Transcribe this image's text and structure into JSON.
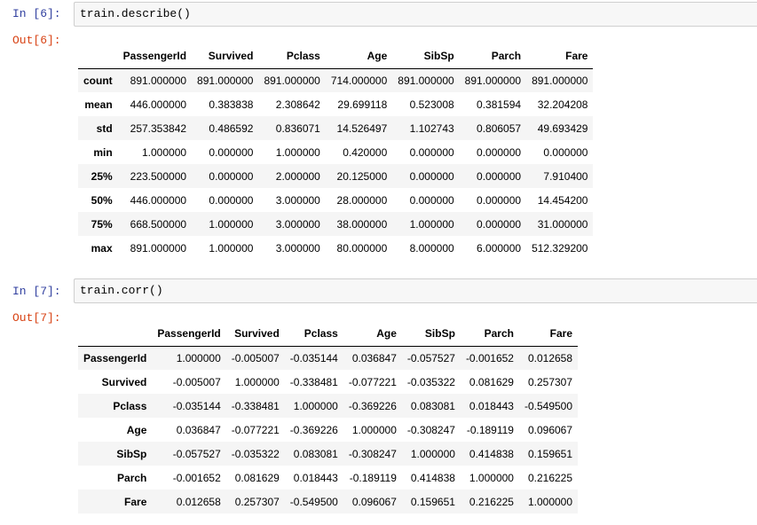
{
  "cells": [
    {
      "in_prompt": "In [6]:",
      "code": "train.describe()",
      "out_prompt": "Out[6]:",
      "table": {
        "columns": [
          "",
          "PassengerId",
          "Survived",
          "Pclass",
          "Age",
          "SibSp",
          "Parch",
          "Fare"
        ],
        "rows": [
          {
            "label": "count",
            "values": [
              "891.000000",
              "891.000000",
              "891.000000",
              "714.000000",
              "891.000000",
              "891.000000",
              "891.000000"
            ]
          },
          {
            "label": "mean",
            "values": [
              "446.000000",
              "0.383838",
              "2.308642",
              "29.699118",
              "0.523008",
              "0.381594",
              "32.204208"
            ]
          },
          {
            "label": "std",
            "values": [
              "257.353842",
              "0.486592",
              "0.836071",
              "14.526497",
              "1.102743",
              "0.806057",
              "49.693429"
            ]
          },
          {
            "label": "min",
            "values": [
              "1.000000",
              "0.000000",
              "1.000000",
              "0.420000",
              "0.000000",
              "0.000000",
              "0.000000"
            ]
          },
          {
            "label": "25%",
            "values": [
              "223.500000",
              "0.000000",
              "2.000000",
              "20.125000",
              "0.000000",
              "0.000000",
              "7.910400"
            ]
          },
          {
            "label": "50%",
            "values": [
              "446.000000",
              "0.000000",
              "3.000000",
              "28.000000",
              "0.000000",
              "0.000000",
              "14.454200"
            ]
          },
          {
            "label": "75%",
            "values": [
              "668.500000",
              "1.000000",
              "3.000000",
              "38.000000",
              "1.000000",
              "0.000000",
              "31.000000"
            ]
          },
          {
            "label": "max",
            "values": [
              "891.000000",
              "1.000000",
              "3.000000",
              "80.000000",
              "8.000000",
              "6.000000",
              "512.329200"
            ]
          }
        ]
      }
    },
    {
      "in_prompt": "In [7]:",
      "code": "train.corr()",
      "out_prompt": "Out[7]:",
      "table": {
        "columns": [
          "",
          "PassengerId",
          "Survived",
          "Pclass",
          "Age",
          "SibSp",
          "Parch",
          "Fare"
        ],
        "rows": [
          {
            "label": "PassengerId",
            "values": [
              "1.000000",
              "-0.005007",
              "-0.035144",
              "0.036847",
              "-0.057527",
              "-0.001652",
              "0.012658"
            ]
          },
          {
            "label": "Survived",
            "values": [
              "-0.005007",
              "1.000000",
              "-0.338481",
              "-0.077221",
              "-0.035322",
              "0.081629",
              "0.257307"
            ]
          },
          {
            "label": "Pclass",
            "values": [
              "-0.035144",
              "-0.338481",
              "1.000000",
              "-0.369226",
              "0.083081",
              "0.018443",
              "-0.549500"
            ]
          },
          {
            "label": "Age",
            "values": [
              "0.036847",
              "-0.077221",
              "-0.369226",
              "1.000000",
              "-0.308247",
              "-0.189119",
              "0.096067"
            ]
          },
          {
            "label": "SibSp",
            "values": [
              "-0.057527",
              "-0.035322",
              "0.083081",
              "-0.308247",
              "1.000000",
              "0.414838",
              "0.159651"
            ]
          },
          {
            "label": "Parch",
            "values": [
              "-0.001652",
              "0.081629",
              "0.018443",
              "-0.189119",
              "0.414838",
              "1.000000",
              "0.216225"
            ]
          },
          {
            "label": "Fare",
            "values": [
              "0.012658",
              "0.257307",
              "-0.549500",
              "0.096067",
              "0.159651",
              "0.216225",
              "1.000000"
            ]
          }
        ]
      }
    }
  ]
}
